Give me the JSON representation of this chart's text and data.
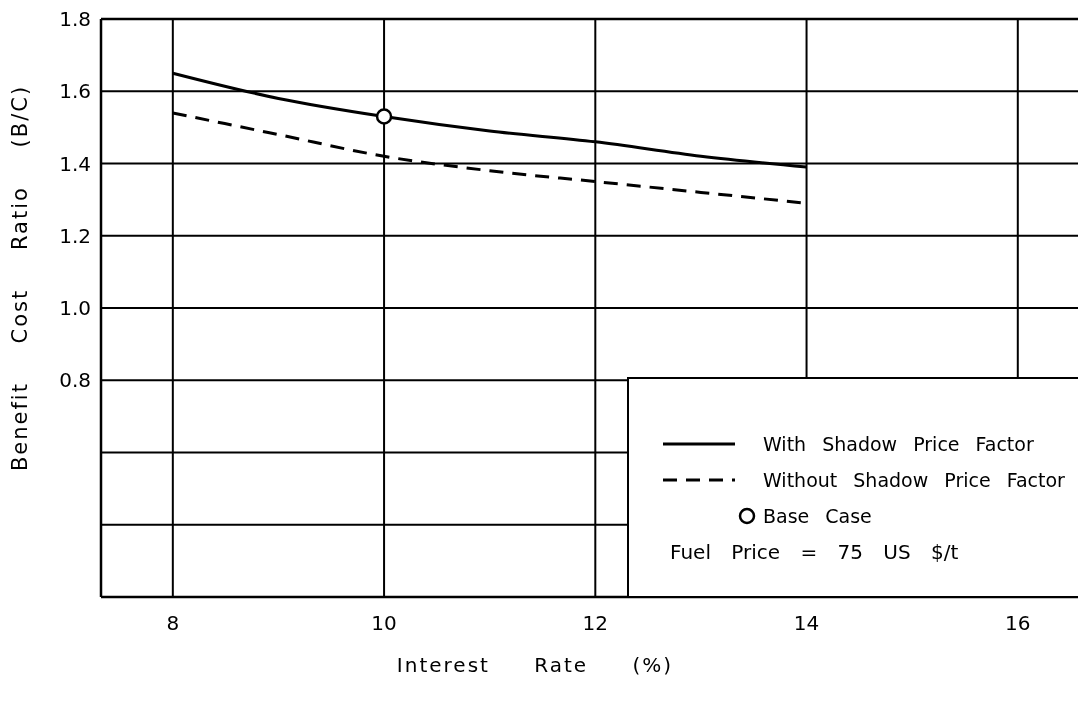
{
  "chart_data": {
    "type": "line",
    "xlabel": "Interest Rate (%)",
    "ylabel": "Benefit Cost Ratio (B/C)",
    "x": [
      8,
      9,
      10,
      11,
      12,
      13,
      14
    ],
    "xlim": [
      7.32,
      16.57
    ],
    "xticks": [
      8,
      10,
      12,
      14,
      16
    ],
    "ylim": [
      0.2,
      1.8
    ],
    "yticks": [
      {
        "value": 0.4,
        "label": null
      },
      {
        "value": 0.6,
        "label": null
      },
      {
        "value": 0.8,
        "label": "0.8"
      },
      {
        "value": 1.0,
        "label": "1.0"
      },
      1.2,
      1.4,
      1.6,
      1.8
    ],
    "grid": true,
    "legend": "bottom right",
    "annotations": [
      "Fuel Price = 75 US $/t"
    ],
    "series": [
      {
        "name": "With Shadow Price Factor",
        "color": "#000000",
        "line_style": "solid",
        "values": [
          1.65,
          1.58,
          1.53,
          1.49,
          1.46,
          1.42,
          1.39
        ]
      },
      {
        "name": "Without Shadow Price Factor",
        "color": "#000000",
        "line_style": "dashed",
        "values": [
          1.54,
          1.48,
          1.42,
          1.38,
          1.35,
          1.32,
          1.29
        ]
      },
      {
        "name": "Base Case",
        "type": "scatter",
        "marker": "circle",
        "color": "#000000",
        "x": [
          10
        ],
        "values": [
          1.53
        ]
      }
    ]
  }
}
